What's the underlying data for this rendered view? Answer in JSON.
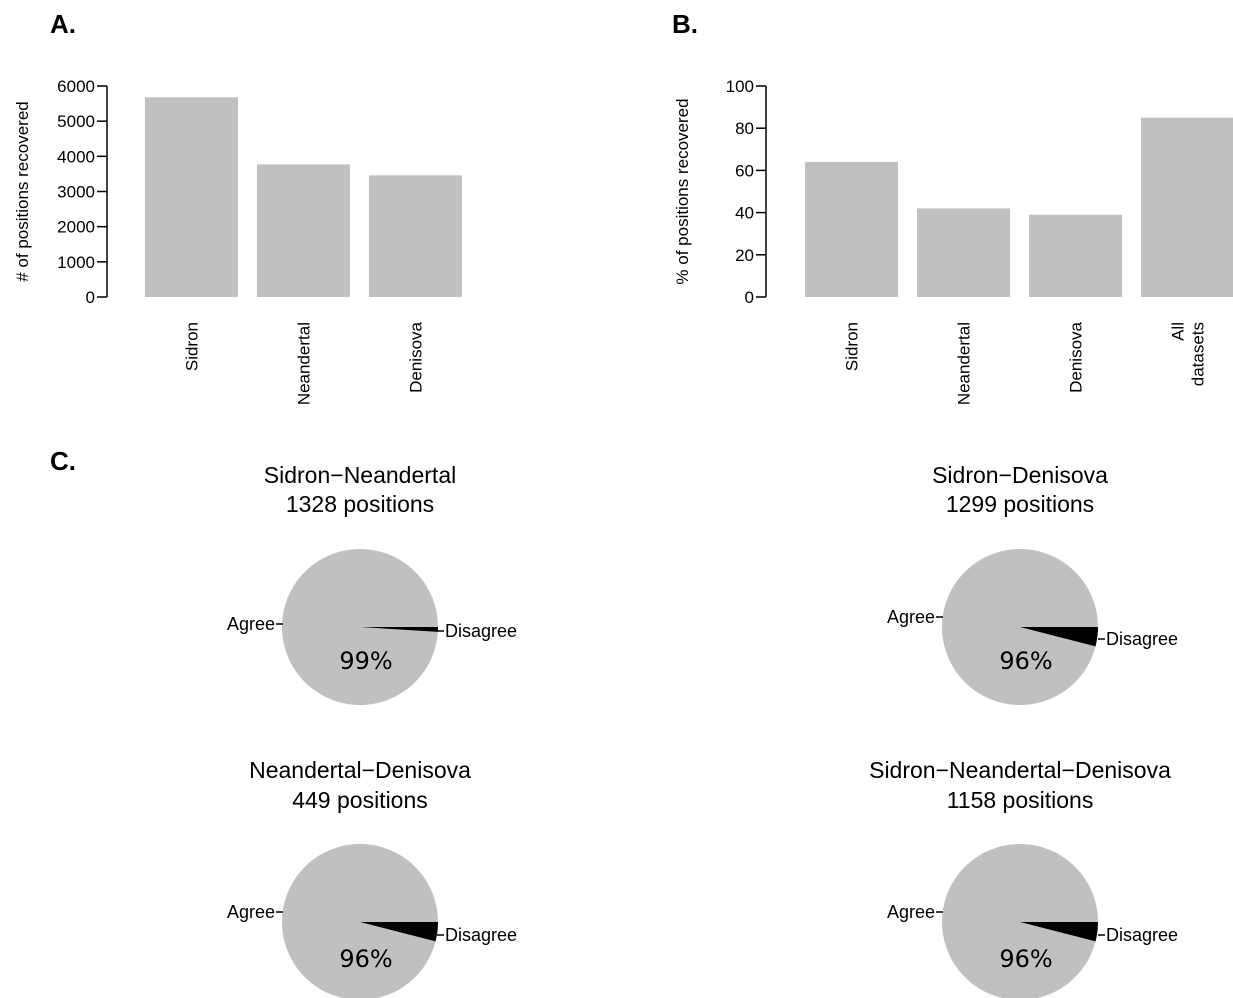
{
  "panels": {
    "a": "A.",
    "b": "B.",
    "c": "C."
  },
  "colors": {
    "bar": "#c0c0c0",
    "agree": "#c0c0c0",
    "disagree": "#000000",
    "axis": "#000000"
  },
  "chart_data": [
    {
      "type": "bar",
      "panel": "A.",
      "ylabel": "# of positions recovered",
      "ylim": [
        0,
        6000
      ],
      "yticks": [
        "0",
        "1000",
        "2000",
        "3000",
        "4000",
        "5000",
        "6000"
      ],
      "categories": [
        [
          "Sidron"
        ],
        [
          "Neandertal"
        ],
        [
          "Denisova"
        ]
      ],
      "values": [
        5680,
        3770,
        3460
      ],
      "grid": false
    },
    {
      "type": "bar",
      "panel": "B.",
      "ylabel": "% of positions recovered",
      "ylim": [
        0,
        100
      ],
      "yticks": [
        "0",
        "20",
        "40",
        "60",
        "80",
        "100"
      ],
      "categories": [
        [
          "Sidron"
        ],
        [
          "Neandertal"
        ],
        [
          "Denisova"
        ],
        [
          "All",
          "datasets"
        ]
      ],
      "values": [
        64,
        42,
        39,
        85
      ],
      "grid": false
    },
    {
      "type": "pie",
      "panel": "C.",
      "title": "Sidron−Neandertal",
      "subtitle": "1328 positions",
      "labels": [
        "Agree",
        "Disagree"
      ],
      "values": [
        99,
        1
      ],
      "annotation": "99%"
    },
    {
      "type": "pie",
      "panel": "C.",
      "title": "Sidron−Denisova",
      "subtitle": "1299 positions",
      "labels": [
        "Agree",
        "Disagree"
      ],
      "values": [
        96,
        4
      ],
      "annotation": "96%"
    },
    {
      "type": "pie",
      "panel": "C.",
      "title": "Neandertal−Denisova",
      "subtitle": "449 positions",
      "labels": [
        "Agree",
        "Disagree"
      ],
      "values": [
        96,
        4
      ],
      "annotation": "96%"
    },
    {
      "type": "pie",
      "panel": "C.",
      "title": "Sidron−Neandertal−Denisova",
      "subtitle": "1158 positions",
      "labels": [
        "Agree",
        "Disagree"
      ],
      "values": [
        96,
        4
      ],
      "annotation": "96%"
    }
  ]
}
